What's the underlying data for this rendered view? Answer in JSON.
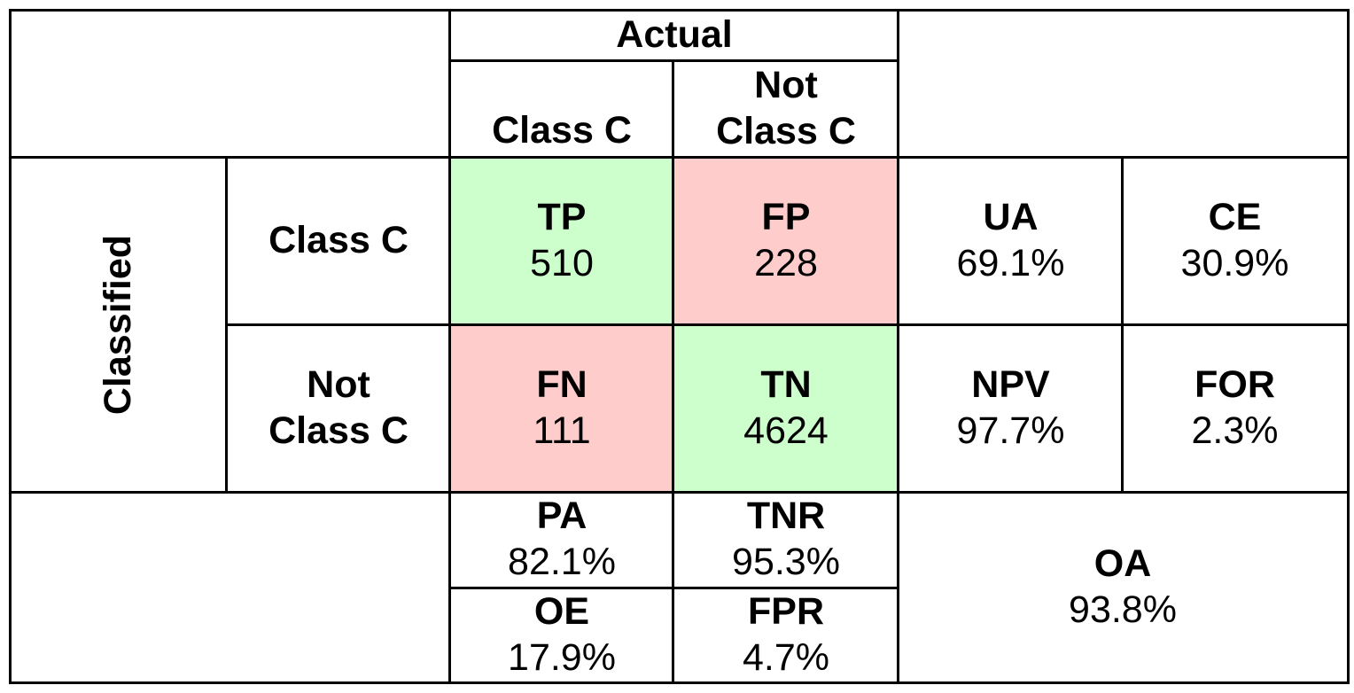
{
  "header": {
    "actual_label": "Actual",
    "col1_label": "Class C",
    "col2_line1": "Not",
    "col2_line2": "Class C"
  },
  "rows": {
    "classified_label": "Classified",
    "row1_label": "Class C",
    "row2_line1": "Not",
    "row2_line2": "Class C"
  },
  "matrix": {
    "tp": {
      "label": "TP",
      "value": "510"
    },
    "fp": {
      "label": "FP",
      "value": "228"
    },
    "fn": {
      "label": "FN",
      "value": "111"
    },
    "tn": {
      "label": "TN",
      "value": "4624"
    }
  },
  "row_metrics": {
    "ua": {
      "label": "UA",
      "value": "69.1%"
    },
    "ce": {
      "label": "CE",
      "value": "30.9%"
    },
    "npv": {
      "label": "NPV",
      "value": "97.7%"
    },
    "for": {
      "label": "FOR",
      "value": "2.3%"
    }
  },
  "col_metrics": {
    "pa": {
      "label": "PA",
      "value": "82.1%"
    },
    "tnr": {
      "label": "TNR",
      "value": "95.3%"
    },
    "oe": {
      "label": "OE",
      "value": "17.9%"
    },
    "fpr": {
      "label": "FPR",
      "value": "4.7%"
    }
  },
  "overall": {
    "label": "OA",
    "value": "93.8%"
  },
  "colors": {
    "correct": "#ccffcc",
    "error": "#ffcccc",
    "border": "#000000"
  }
}
